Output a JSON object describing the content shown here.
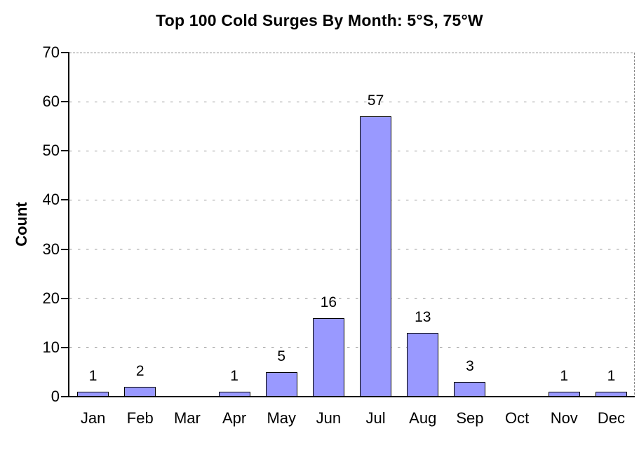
{
  "chart_data": {
    "type": "bar",
    "title": "Top 100 Cold Surges By Month: 5°S, 75°W",
    "categories": [
      "Jan",
      "Feb",
      "Mar",
      "Apr",
      "May",
      "Jun",
      "Jul",
      "Aug",
      "Sep",
      "Oct",
      "Nov",
      "Dec"
    ],
    "values": [
      1,
      2,
      0,
      1,
      5,
      16,
      57,
      13,
      3,
      0,
      1,
      1
    ],
    "value_labels": [
      "1",
      "2",
      "",
      "1",
      "5",
      "16",
      "57",
      "13",
      "3",
      "",
      "1",
      "1"
    ],
    "xlabel": "",
    "ylabel": "Count",
    "ylim": [
      0,
      70
    ],
    "yticks": [
      0,
      10,
      20,
      30,
      40,
      50,
      60,
      70
    ],
    "legend": "off",
    "grid": "horizontal dashed gridlines; dashed top and right plot border",
    "bar_color": "#9999FF",
    "bar_border_color": "#000000",
    "gridline_color": "#969696",
    "axis_color": "#000000",
    "text_color": "#000000",
    "background_color": "#FFFFFF"
  }
}
